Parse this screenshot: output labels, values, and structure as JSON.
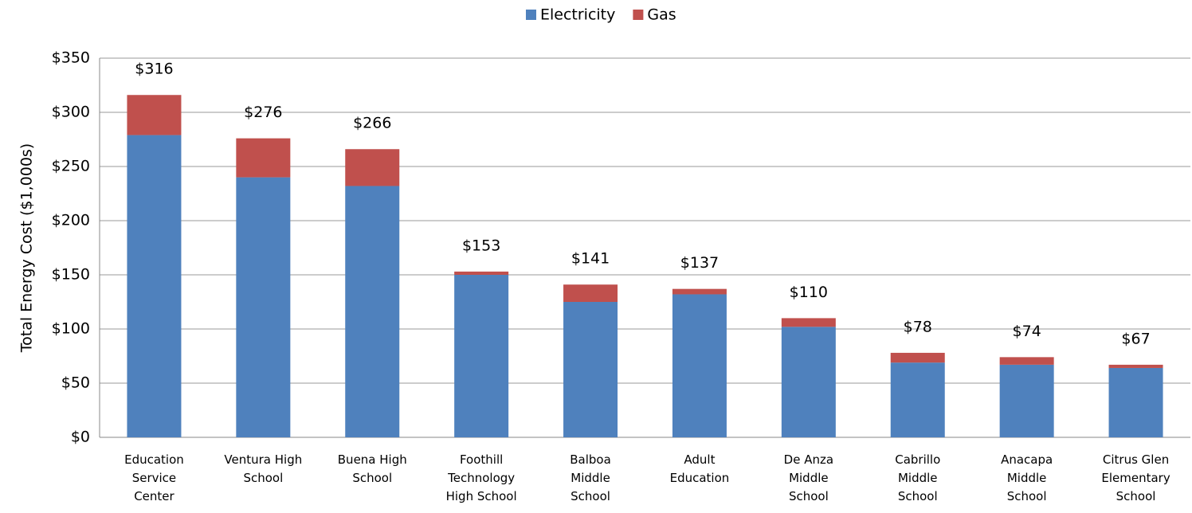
{
  "chart_data": {
    "type": "stacked-bar",
    "y_label": "Total Energy Cost   ($1,000s)",
    "categories": [
      "Education\nService\nCenter",
      "Ventura High\nSchool",
      "Buena High\nSchool",
      "Foothill\nTechnology\nHigh School",
      "Balboa\nMiddle\nSchool",
      "Adult\nEducation",
      "De Anza\nMiddle\nSchool",
      "Cabrillo\nMiddle\nSchool",
      "Anacapa\nMiddle\nSchool",
      "Citrus Glen\nElementary\nSchool"
    ],
    "series": [
      {
        "name": "Electricity",
        "color": "#4f81bd",
        "values": [
          279,
          240,
          232,
          150,
          125,
          132,
          102,
          69,
          67,
          64
        ]
      },
      {
        "name": "Gas",
        "color": "#c0504d",
        "values": [
          37,
          36,
          34,
          3,
          16,
          5,
          8,
          9,
          7,
          3
        ]
      }
    ],
    "totals": [
      316,
      276,
      266,
      153,
      141,
      137,
      110,
      78,
      74,
      67
    ],
    "total_labels": [
      "$316",
      "$276",
      "$266",
      "$153",
      "$141",
      "$137",
      "$110",
      "$78",
      "$74",
      "$67"
    ],
    "ylim": [
      0,
      350
    ],
    "yticks": [
      {
        "value": 0,
        "label": "$0"
      },
      {
        "value": 50,
        "label": "$50"
      },
      {
        "value": 100,
        "label": "$100"
      },
      {
        "value": 150,
        "label": "$150"
      },
      {
        "value": 200,
        "label": "$200"
      },
      {
        "value": 250,
        "label": "$250"
      },
      {
        "value": 300,
        "label": "$300"
      },
      {
        "value": 350,
        "label": "$350"
      }
    ],
    "grid": true,
    "legend": "top"
  }
}
